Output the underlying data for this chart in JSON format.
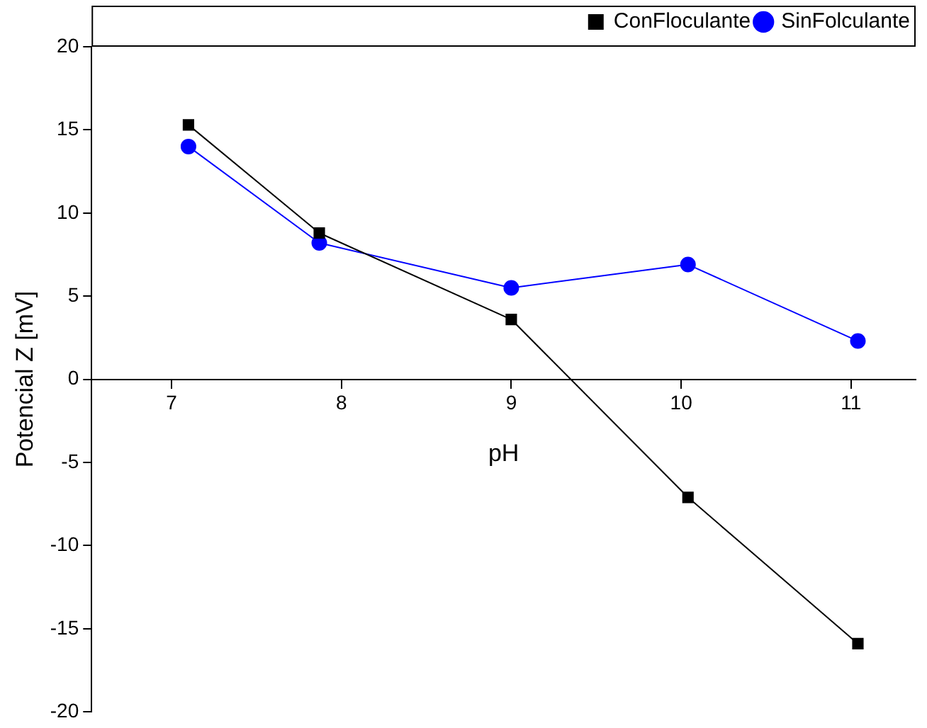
{
  "chart_data": {
    "type": "line",
    "xlabel": "pH",
    "ylabel": "Potencial Z [mV]",
    "xlim": [
      6.53,
      11.38
    ],
    "xticks": [
      7,
      8,
      9,
      10,
      11
    ],
    "ylim": [
      -20,
      20
    ],
    "yticks": [
      -20,
      -15,
      -10,
      -5,
      0,
      5,
      10,
      15,
      20
    ],
    "grid": false,
    "legend": "top right",
    "series": [
      {
        "name": "ConFloculante",
        "color": "#000000",
        "marker": "square",
        "x": [
          7.1,
          7.87,
          9.0,
          10.04,
          11.04
        ],
        "values": [
          15.3,
          8.8,
          3.6,
          -7.1,
          -15.9
        ]
      },
      {
        "name": "SinFolculante",
        "color": "#0000ff",
        "marker": "circle",
        "x": [
          7.1,
          7.87,
          9.0,
          10.04,
          11.04
        ],
        "values": [
          14.0,
          8.2,
          5.5,
          6.9,
          2.3
        ]
      }
    ]
  }
}
